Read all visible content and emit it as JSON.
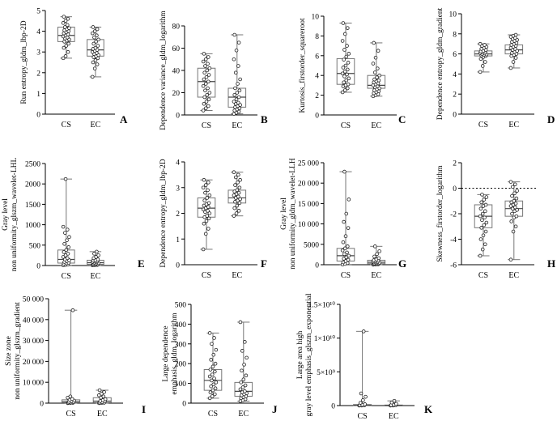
{
  "chart_data": [
    {
      "letter": "A",
      "type": "box",
      "ylabel": "Run entropy_gldm_lbp-2D",
      "ylim": [
        0,
        5
      ],
      "yticks": [
        {
          "v": 0,
          "t": "0"
        },
        {
          "v": 1,
          "t": "1"
        },
        {
          "v": 2,
          "t": "2"
        },
        {
          "v": 3,
          "t": "3"
        },
        {
          "v": 4,
          "t": "4"
        },
        {
          "v": 5,
          "t": "5"
        }
      ],
      "categories": [
        "CS",
        "EC"
      ],
      "boxes": [
        {
          "min": 2.7,
          "q1": 3.5,
          "median": 3.8,
          "q3": 4.2,
          "max": 4.7,
          "points": [
            2.7,
            2.8,
            3.0,
            3.2,
            3.3,
            3.4,
            3.5,
            3.55,
            3.6,
            3.65,
            3.7,
            3.75,
            3.8,
            3.85,
            3.9,
            3.95,
            4.0,
            4.05,
            4.1,
            4.15,
            4.2,
            4.3,
            4.4,
            4.5,
            4.6,
            4.7
          ]
        },
        {
          "min": 1.8,
          "q1": 2.8,
          "median": 3.1,
          "q3": 3.6,
          "max": 4.2,
          "points": [
            1.8,
            2.2,
            2.4,
            2.5,
            2.6,
            2.7,
            2.75,
            2.8,
            2.85,
            2.9,
            2.95,
            3.0,
            3.05,
            3.1,
            3.15,
            3.2,
            3.3,
            3.4,
            3.5,
            3.6,
            3.7,
            3.8,
            3.9,
            4.0,
            4.1,
            4.2
          ]
        }
      ]
    },
    {
      "letter": "B",
      "type": "box",
      "ylabel": "Dependence variance_gldm_logarithm",
      "ylim": [
        0,
        80
      ],
      "yticks": [
        {
          "v": 0,
          "t": "0"
        },
        {
          "v": 20,
          "t": "20"
        },
        {
          "v": 40,
          "t": "40"
        },
        {
          "v": 60,
          "t": "60"
        },
        {
          "v": 80,
          "t": "80"
        }
      ],
      "categories": [
        "CS",
        "EC"
      ],
      "boxes": [
        {
          "min": 4,
          "q1": 16,
          "median": 30,
          "q3": 42,
          "max": 55,
          "points": [
            4,
            6,
            8,
            10,
            12,
            14,
            16,
            18,
            20,
            22,
            24,
            26,
            28,
            30,
            32,
            34,
            36,
            38,
            40,
            42,
            44,
            46,
            48,
            50,
            52,
            55
          ]
        },
        {
          "min": 1,
          "q1": 7,
          "median": 16,
          "q3": 24,
          "max": 72,
          "points": [
            1,
            2,
            3,
            4,
            5,
            6,
            7,
            8,
            9,
            10,
            11,
            12,
            14,
            16,
            18,
            20,
            22,
            24,
            28,
            32,
            38,
            44,
            50,
            58,
            65,
            72
          ]
        }
      ]
    },
    {
      "letter": "C",
      "type": "box",
      "ylabel": "Kurtosis_firstorder_squareroot",
      "ylim": [
        0,
        10
      ],
      "yticks": [
        {
          "v": 0,
          "t": "0"
        },
        {
          "v": 2,
          "t": "2"
        },
        {
          "v": 4,
          "t": "4"
        },
        {
          "v": 6,
          "t": "6"
        },
        {
          "v": 8,
          "t": "8"
        },
        {
          "v": 10,
          "t": "10"
        }
      ],
      "categories": [
        "CS",
        "EC"
      ],
      "boxes": [
        {
          "min": 2.3,
          "q1": 3.1,
          "median": 4.2,
          "q3": 5.7,
          "max": 9.3,
          "points": [
            2.3,
            2.5,
            2.7,
            2.9,
            3.0,
            3.1,
            3.3,
            3.5,
            3.7,
            3.9,
            4.1,
            4.2,
            4.4,
            4.6,
            4.8,
            5.0,
            5.3,
            5.6,
            5.9,
            6.2,
            6.6,
            7.0,
            7.5,
            8.2,
            8.8,
            9.3
          ]
        },
        {
          "min": 1.9,
          "q1": 2.7,
          "median": 3.0,
          "q3": 4.0,
          "max": 7.3,
          "points": [
            1.9,
            2.0,
            2.1,
            2.2,
            2.3,
            2.4,
            2.5,
            2.6,
            2.7,
            2.8,
            2.9,
            3.0,
            3.1,
            3.2,
            3.3,
            3.4,
            3.5,
            3.6,
            3.8,
            4.0,
            4.3,
            4.7,
            5.2,
            5.8,
            6.5,
            7.3
          ]
        }
      ]
    },
    {
      "letter": "D",
      "type": "box",
      "ylabel": "Dependence entropy_gldm_gradient",
      "ylim": [
        0,
        10
      ],
      "yticks": [
        {
          "v": 0,
          "t": "0"
        },
        {
          "v": 2,
          "t": "2"
        },
        {
          "v": 4,
          "t": "4"
        },
        {
          "v": 6,
          "t": "6"
        },
        {
          "v": 8,
          "t": "8"
        },
        {
          "v": 10,
          "t": "10"
        }
      ],
      "categories": [
        "CS",
        "EC"
      ],
      "boxes": [
        {
          "min": 4.2,
          "q1": 5.8,
          "median": 6.0,
          "q3": 6.3,
          "max": 7.0,
          "points": [
            4.2,
            4.8,
            5.2,
            5.5,
            5.7,
            5.8,
            5.85,
            5.9,
            5.95,
            6.0,
            6.05,
            6.1,
            6.15,
            6.2,
            6.25,
            6.3,
            6.4,
            6.5,
            6.6,
            6.7,
            6.8,
            6.9,
            7.0
          ]
        },
        {
          "min": 4.6,
          "q1": 6.0,
          "median": 6.4,
          "q3": 6.9,
          "max": 7.9,
          "points": [
            4.6,
            5.2,
            5.6,
            5.8,
            5.9,
            6.0,
            6.1,
            6.2,
            6.3,
            6.4,
            6.5,
            6.6,
            6.7,
            6.8,
            6.9,
            7.0,
            7.1,
            7.2,
            7.3,
            7.4,
            7.5,
            7.6,
            7.7,
            7.8,
            7.9
          ]
        }
      ]
    },
    {
      "letter": "E",
      "type": "box",
      "ylabel": "Gray level non uniformity_glszm_wavelet-LHL",
      "ylim": [
        0,
        2500
      ],
      "yticks": [
        {
          "v": 0,
          "t": "0"
        },
        {
          "v": 500,
          "t": "500"
        },
        {
          "v": 1000,
          "t": "1000"
        },
        {
          "v": 1500,
          "t": "1500"
        },
        {
          "v": 2000,
          "t": "2000"
        },
        {
          "v": 2500,
          "t": "2500"
        }
      ],
      "categories": [
        "CS",
        "EC"
      ],
      "boxes": [
        {
          "min": 5,
          "q1": 60,
          "median": 150,
          "q3": 380,
          "max": 2120,
          "points": [
            5,
            15,
            25,
            40,
            55,
            70,
            90,
            110,
            130,
            150,
            180,
            210,
            250,
            290,
            330,
            380,
            450,
            530,
            620,
            700,
            800,
            880,
            950,
            2120
          ]
        },
        {
          "min": 5,
          "q1": 30,
          "median": 70,
          "q3": 130,
          "max": 340,
          "points": [
            5,
            10,
            15,
            20,
            25,
            30,
            40,
            50,
            60,
            70,
            80,
            90,
            100,
            110,
            120,
            130,
            150,
            180,
            210,
            250,
            290,
            340
          ]
        }
      ]
    },
    {
      "letter": "F",
      "type": "box",
      "ylabel": "Dependence entropy_gldm_lbp-2D",
      "ylim": [
        0,
        4
      ],
      "yticks": [
        {
          "v": 0,
          "t": "0"
        },
        {
          "v": 1,
          "t": "1"
        },
        {
          "v": 2,
          "t": "2"
        },
        {
          "v": 3,
          "t": "3"
        },
        {
          "v": 4,
          "t": "4"
        }
      ],
      "categories": [
        "CS",
        "EC"
      ],
      "boxes": [
        {
          "min": 0.6,
          "q1": 1.85,
          "median": 2.2,
          "q3": 2.6,
          "max": 3.3,
          "points": [
            0.6,
            1.2,
            1.4,
            1.6,
            1.7,
            1.8,
            1.85,
            1.9,
            2.0,
            2.05,
            2.1,
            2.15,
            2.2,
            2.25,
            2.3,
            2.35,
            2.4,
            2.5,
            2.6,
            2.7,
            2.8,
            2.9,
            3.0,
            3.1,
            3.2,
            3.3
          ]
        },
        {
          "min": 1.9,
          "q1": 2.4,
          "median": 2.6,
          "q3": 2.9,
          "max": 3.6,
          "points": [
            1.9,
            2.0,
            2.1,
            2.2,
            2.3,
            2.4,
            2.45,
            2.5,
            2.55,
            2.6,
            2.65,
            2.7,
            2.75,
            2.8,
            2.85,
            2.9,
            3.0,
            3.1,
            3.2,
            3.3,
            3.4,
            3.5,
            3.6
          ]
        }
      ]
    },
    {
      "letter": "G",
      "type": "box",
      "ylabel": "Gray level non uniformity_gldm_wavelet-LLH",
      "ylim": [
        0,
        25000
      ],
      "yticks": [
        {
          "v": 0,
          "t": "0"
        },
        {
          "v": 5000,
          "t": "5000"
        },
        {
          "v": 10000,
          "t": "10 000"
        },
        {
          "v": 15000,
          "t": "15 000"
        },
        {
          "v": 20000,
          "t": "20 000"
        },
        {
          "v": 25000,
          "t": "25 000"
        }
      ],
      "categories": [
        "CS",
        "EC"
      ],
      "boxes": [
        {
          "min": 50,
          "q1": 900,
          "median": 2200,
          "q3": 4000,
          "max": 22800,
          "points": [
            50,
            200,
            400,
            600,
            900,
            1200,
            1500,
            1800,
            2200,
            2600,
            3000,
            3500,
            4000,
            4500,
            5500,
            7000,
            9000,
            10500,
            12500,
            16000,
            22800
          ]
        },
        {
          "min": 20,
          "q1": 250,
          "median": 600,
          "q3": 1100,
          "max": 4500,
          "points": [
            20,
            60,
            100,
            150,
            200,
            250,
            320,
            400,
            500,
            600,
            700,
            800,
            900,
            1000,
            1100,
            1300,
            1600,
            2000,
            2600,
            3300,
            4500
          ]
        }
      ]
    },
    {
      "letter": "H",
      "type": "box",
      "ylabel": "Skewness_firstorder_logarithm",
      "ylim": [
        -6,
        2
      ],
      "yticks": [
        {
          "v": -6,
          "t": "-6"
        },
        {
          "v": -4,
          "t": "-4"
        },
        {
          "v": -2,
          "t": "-2"
        },
        {
          "v": 0,
          "t": "0"
        },
        {
          "v": 2,
          "t": "2"
        }
      ],
      "refline": 0,
      "categories": [
        "CS",
        "EC"
      ],
      "boxes": [
        {
          "min": -5.3,
          "q1": -3.1,
          "median": -2.2,
          "q3": -1.3,
          "max": -0.5,
          "points": [
            -5.3,
            -4.8,
            -4.4,
            -4.0,
            -3.7,
            -3.4,
            -3.1,
            -2.9,
            -2.7,
            -2.5,
            -2.3,
            -2.2,
            -2.0,
            -1.8,
            -1.6,
            -1.4,
            -1.3,
            -1.1,
            -0.9,
            -0.7,
            -0.5
          ]
        },
        {
          "min": -5.6,
          "q1": -2.2,
          "median": -1.6,
          "q3": -1.0,
          "max": 0.5,
          "points": [
            -5.6,
            -3.4,
            -3.0,
            -2.6,
            -2.3,
            -2.2,
            -2.0,
            -1.8,
            -1.7,
            -1.6,
            -1.5,
            -1.4,
            -1.3,
            -1.2,
            -1.1,
            -1.0,
            -0.8,
            -0.6,
            -0.4,
            -0.2,
            0.1,
            0.3,
            0.5
          ]
        }
      ]
    },
    {
      "letter": "I",
      "type": "box",
      "ylabel": "Size zone non uniformity_glszm_gradient",
      "ylim": [
        0,
        50000
      ],
      "yticks": [
        {
          "v": 0,
          "t": "0"
        },
        {
          "v": 10000,
          "t": "10 000"
        },
        {
          "v": 20000,
          "t": "20 000"
        },
        {
          "v": 30000,
          "t": "30 000"
        },
        {
          "v": 40000,
          "t": "40 000"
        },
        {
          "v": 50000,
          "t": "50 000"
        }
      ],
      "categories": [
        "CS",
        "EC"
      ],
      "boxes": [
        {
          "min": 20,
          "q1": 250,
          "median": 700,
          "q3": 1600,
          "max": 44500,
          "points": [
            20,
            80,
            150,
            250,
            350,
            500,
            700,
            900,
            1200,
            1600,
            2000,
            2600,
            3200,
            44500
          ]
        },
        {
          "min": 20,
          "q1": 300,
          "median": 1000,
          "q3": 2600,
          "max": 6200,
          "points": [
            20,
            100,
            200,
            300,
            500,
            800,
            1000,
            1400,
            1900,
            2600,
            3200,
            3800,
            4500,
            5300,
            6200
          ]
        }
      ]
    },
    {
      "letter": "J",
      "type": "box",
      "ylabel": "Large dependence emphasis_gldm_logarithm",
      "ylim": [
        0,
        500
      ],
      "yticks": [
        {
          "v": 0,
          "t": "0"
        },
        {
          "v": 100,
          "t": "100"
        },
        {
          "v": 200,
          "t": "200"
        },
        {
          "v": 300,
          "t": "300"
        },
        {
          "v": 400,
          "t": "400"
        },
        {
          "v": 500,
          "t": "500"
        }
      ],
      "categories": [
        "CS",
        "EC"
      ],
      "boxes": [
        {
          "min": 25,
          "q1": 65,
          "median": 115,
          "q3": 170,
          "max": 355,
          "points": [
            25,
            35,
            45,
            55,
            65,
            75,
            85,
            95,
            105,
            115,
            125,
            135,
            145,
            160,
            170,
            185,
            200,
            220,
            245,
            270,
            300,
            330,
            355
          ]
        },
        {
          "min": 10,
          "q1": 35,
          "median": 60,
          "q3": 105,
          "max": 410,
          "points": [
            10,
            15,
            20,
            25,
            30,
            35,
            40,
            45,
            50,
            55,
            60,
            70,
            80,
            90,
            105,
            120,
            140,
            165,
            195,
            230,
            265,
            310,
            410
          ]
        }
      ]
    },
    {
      "letter": "K",
      "type": "box",
      "ylabel": "Large area high gray level emphasis_glszm_exponential",
      "ylim": [
        0,
        15000000000
      ],
      "yticks": [
        {
          "v": 0,
          "t": "0"
        },
        {
          "v": 5000000000,
          "t": "5×10⁹"
        },
        {
          "v": 10000000000,
          "t": "1×10¹⁰"
        },
        {
          "v": 15000000000,
          "t": "1.5×10¹⁰"
        }
      ],
      "categories": [
        "CS",
        "EC"
      ],
      "boxes": [
        {
          "min": 0,
          "q1": 20000000,
          "median": 60000000,
          "q3": 150000000,
          "max": 11000000000,
          "points": [
            0,
            10000000,
            30000000,
            60000000,
            100000000,
            200000000,
            400000000,
            800000000,
            1300000000,
            1800000000,
            11000000000
          ]
        },
        {
          "min": 0,
          "q1": 10000000,
          "median": 30000000,
          "q3": 80000000,
          "max": 700000000,
          "points": [
            0,
            10000000,
            30000000,
            60000000,
            120000000,
            250000000,
            450000000,
            700000000
          ]
        }
      ]
    }
  ]
}
